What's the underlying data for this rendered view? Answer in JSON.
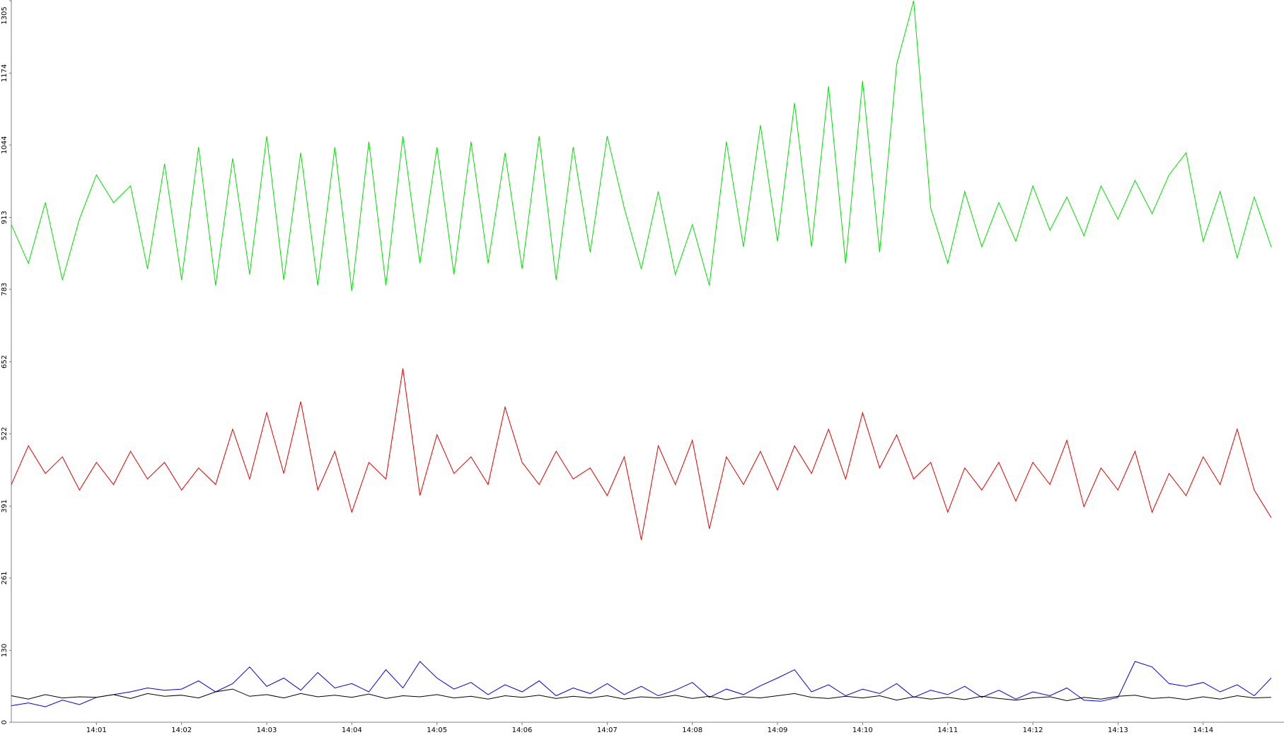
{
  "chart_data": {
    "type": "line",
    "xlim": [
      0,
      14.95
    ],
    "xticks": [
      {
        "value": 1,
        "label": "14:01"
      },
      {
        "value": 2,
        "label": "14:02"
      },
      {
        "value": 3,
        "label": "14:03"
      },
      {
        "value": 4,
        "label": "14:04"
      },
      {
        "value": 5,
        "label": "14:05"
      },
      {
        "value": 6,
        "label": "14:06"
      },
      {
        "value": 7,
        "label": "14:07"
      },
      {
        "value": 8,
        "label": "14:08"
      },
      {
        "value": 9,
        "label": "14:09"
      },
      {
        "value": 10,
        "label": "14:10"
      },
      {
        "value": 11,
        "label": "14:11"
      },
      {
        "value": 12,
        "label": "14:12"
      },
      {
        "value": 13,
        "label": "14:13"
      },
      {
        "value": 14,
        "label": "14:14"
      }
    ],
    "ylim": [
      0,
      1305
    ],
    "yticks": [
      0,
      130,
      261,
      391,
      522,
      652,
      783,
      913,
      1044,
      1174,
      1305
    ],
    "x": [
      0,
      0.2,
      0.4,
      0.6,
      0.8,
      1,
      1.2,
      1.4,
      1.6,
      1.8,
      2,
      2.2,
      2.4,
      2.6,
      2.8,
      3,
      3.2,
      3.4,
      3.6,
      3.8,
      4,
      4.2,
      4.4,
      4.6,
      4.8,
      5,
      5.2,
      5.4,
      5.6,
      5.8,
      6,
      6.2,
      6.4,
      6.6,
      6.8,
      7,
      7.2,
      7.4,
      7.6,
      7.8,
      8,
      8.2,
      8.4,
      8.6,
      8.8,
      9,
      9.2,
      9.4,
      9.6,
      9.8,
      10,
      10.2,
      10.4,
      10.6,
      10.8,
      11,
      11.2,
      11.4,
      11.6,
      11.8,
      12,
      12.2,
      12.4,
      12.6,
      12.8,
      13,
      13.2,
      13.4,
      13.6,
      13.8,
      14,
      14.2,
      14.4,
      14.6,
      14.8
    ],
    "series": [
      {
        "color": "#00e000",
        "values": [
          900,
          830,
          940,
          800,
          910,
          990,
          940,
          970,
          820,
          1010,
          800,
          1040,
          790,
          1020,
          810,
          1060,
          800,
          1030,
          790,
          1040,
          780,
          1050,
          790,
          1060,
          830,
          1040,
          810,
          1050,
          830,
          1030,
          820,
          1060,
          800,
          1040,
          850,
          1060,
          930,
          820,
          960,
          810,
          900,
          790,
          1050,
          860,
          1080,
          870,
          1120,
          860,
          1150,
          830,
          1160,
          850,
          1190,
          1305,
          930,
          830,
          960,
          860,
          940,
          870,
          970,
          890,
          950,
          880,
          970,
          910,
          980,
          920,
          990,
          1030,
          870,
          960,
          840,
          950,
          860
        ]
      },
      {
        "color": "#e00000",
        "values": [
          430,
          500,
          450,
          480,
          420,
          470,
          430,
          490,
          440,
          470,
          420,
          460,
          430,
          530,
          440,
          560,
          450,
          580,
          420,
          490,
          380,
          470,
          440,
          640,
          410,
          520,
          450,
          480,
          430,
          570,
          470,
          430,
          490,
          440,
          460,
          410,
          480,
          330,
          500,
          430,
          510,
          350,
          480,
          430,
          490,
          420,
          500,
          450,
          530,
          440,
          560,
          460,
          520,
          440,
          470,
          380,
          460,
          420,
          470,
          400,
          470,
          430,
          510,
          390,
          460,
          420,
          490,
          380,
          450,
          410,
          480,
          430,
          530,
          420,
          370
        ]
      },
      {
        "color": "#0000e0",
        "values": [
          30,
          35,
          28,
          40,
          32,
          45,
          50,
          55,
          62,
          58,
          60,
          75,
          55,
          70,
          100,
          65,
          80,
          58,
          90,
          62,
          70,
          55,
          95,
          62,
          110,
          80,
          60,
          72,
          50,
          68,
          55,
          75,
          48,
          62,
          52,
          70,
          50,
          65,
          48,
          58,
          72,
          45,
          60,
          50,
          66,
          80,
          95,
          55,
          68,
          48,
          60,
          52,
          70,
          45,
          58,
          50,
          65,
          45,
          58,
          42,
          55,
          48,
          62,
          40,
          38,
          45,
          110,
          100,
          70,
          65,
          72,
          55,
          68,
          48,
          80
        ]
      },
      {
        "color": "#000000",
        "values": [
          48,
          42,
          50,
          44,
          46,
          45,
          50,
          43,
          52,
          47,
          49,
          44,
          55,
          60,
          47,
          50,
          44,
          52,
          46,
          49,
          45,
          51,
          43,
          48,
          46,
          50,
          44,
          47,
          42,
          48,
          45,
          49,
          43,
          47,
          44,
          48,
          42,
          46,
          44,
          49,
          43,
          47,
          41,
          46,
          44,
          48,
          52,
          45,
          43,
          47,
          44,
          48,
          40,
          46,
          42,
          45,
          41,
          47,
          43,
          40,
          44,
          46,
          39,
          45,
          42,
          47,
          49,
          43,
          45,
          41,
          46,
          42,
          48,
          44,
          45
        ]
      }
    ]
  }
}
